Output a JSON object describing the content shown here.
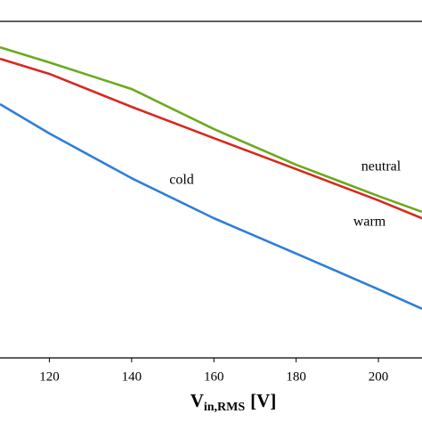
{
  "chart_data": {
    "type": "line",
    "x_label": {
      "main": "V",
      "subscript": "in,RMS",
      "unit": "[V]"
    },
    "x": [
      108,
      120,
      140,
      160,
      180,
      200,
      210.6
    ],
    "xlim": [
      108,
      210.6
    ],
    "xticks": [
      120,
      140,
      160,
      180,
      200
    ],
    "ylim": [
      0,
      1
    ],
    "series": [
      {
        "name": "neutral",
        "color": "#6aaa1e",
        "values": [
          0.923,
          0.878,
          0.799,
          0.68,
          0.574,
          0.481,
          0.434
        ]
      },
      {
        "name": "warm",
        "color": "#d62a1e",
        "values": [
          0.889,
          0.844,
          0.746,
          0.653,
          0.561,
          0.468,
          0.415
        ]
      },
      {
        "name": "cold",
        "color": "#2f7ed8",
        "values": [
          0.754,
          0.667,
          0.534,
          0.415,
          0.31,
          0.204,
          0.146
        ]
      }
    ]
  }
}
